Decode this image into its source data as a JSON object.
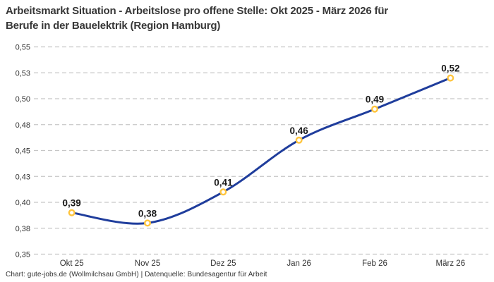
{
  "header": {
    "title_lines": [
      "Arbeitsmarkt Situation - Arbeitslose pro offene Stelle: Okt 2025 - März 2026 für",
      "Berufe in der Bauelektrik (Region Hamburg)"
    ]
  },
  "footer": {
    "credit": "Chart: gute-jobs.de (Wollmilchsau GmbH) | Datenquelle: Bundesagentur für Arbeit"
  },
  "chart_data": {
    "type": "line",
    "title": "Arbeitsmarkt Situation - Arbeitslose pro offene Stelle: Okt 2025 - März 2026 für Berufe in der Bauelektrik (Region Hamburg)",
    "categories": [
      "Okt 25",
      "Nov 25",
      "Dez 25",
      "Jan 26",
      "Feb 26",
      "März 26"
    ],
    "values": [
      0.39,
      0.38,
      0.41,
      0.46,
      0.49,
      0.52
    ],
    "point_labels": [
      "0,39",
      "0,38",
      "0,41",
      "0,46",
      "0,49",
      "0,52"
    ],
    "y_ticks": [
      0.55,
      0.525,
      0.5,
      0.475,
      0.45,
      0.425,
      0.4,
      0.375,
      0.35
    ],
    "y_tick_labels": [
      "0,55",
      "0,53",
      "0,50",
      "0,48",
      "0,45",
      "0,43",
      "0,40",
      "0,38",
      "0,35"
    ],
    "ylim": [
      0.35,
      0.55
    ],
    "xlabel": "",
    "ylabel": "",
    "grid": "horizontal-dashed",
    "legend": "none",
    "curve": "smooth",
    "colors": {
      "line": "#1f3d9c",
      "marker_stroke": "#ffc53d",
      "marker_fill": "#ffffff",
      "grid": "#c6c6c6",
      "axis_text": "#333333",
      "point_label": "#1a1a1a",
      "title": "#373737"
    }
  }
}
